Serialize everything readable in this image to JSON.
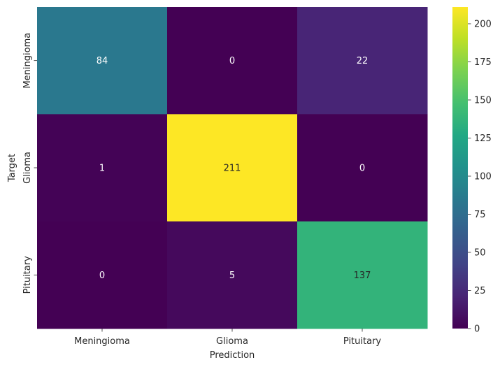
{
  "chart_data": {
    "type": "heatmap",
    "title": "",
    "xlabel": "Prediction",
    "ylabel": "Target",
    "x_categories": [
      "Meningioma",
      "Glioma",
      "Pituitary"
    ],
    "y_categories": [
      "Meningioma",
      "Glioma",
      "Pituitary"
    ],
    "values": [
      [
        84,
        0,
        22
      ],
      [
        1,
        211,
        0
      ],
      [
        0,
        5,
        137
      ]
    ],
    "colormap": "viridis",
    "value_range": [
      0,
      211
    ],
    "colorbar_ticks": [
      0,
      25,
      50,
      75,
      100,
      125,
      150,
      175,
      200
    ],
    "annotation_light_color": "#ffffff",
    "annotation_dark_color": "#262626"
  }
}
